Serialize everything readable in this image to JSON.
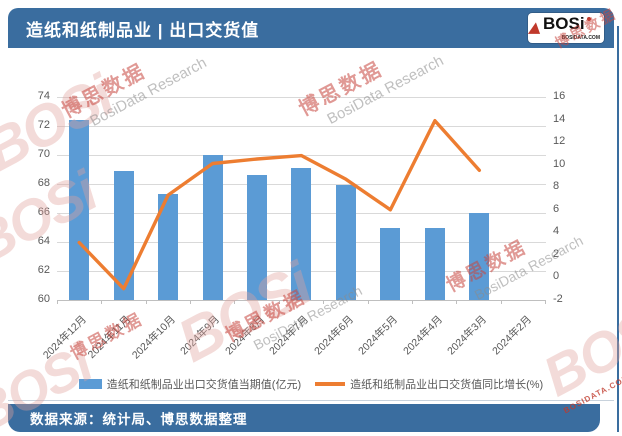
{
  "header": {
    "title": "造纸和纸制品业 | 出口交货值",
    "logo_text": "BOSi",
    "logo_subtext": "BOSIDATA.COM"
  },
  "footer": {
    "source_text": "数据来源：统计局、博思数据整理"
  },
  "watermark": {
    "logo": "BOSi",
    "cn": "博思数据",
    "en": "BosiData Research",
    "site": "BOSIDATA.COM"
  },
  "colors": {
    "header_bg": "#3A6D9F",
    "bar": "#5B9BD5",
    "line": "#ED7D31",
    "grid": "#D9D9D9",
    "axis_text": "#595959"
  },
  "chart_data": {
    "type": "bar+line",
    "categories": [
      "2024年12月",
      "2024年11月",
      "2024年10月",
      "2024年9月",
      "2024年8月",
      "2024年7月",
      "2024年6月",
      "2024年5月",
      "2024年4月",
      "2024年3月",
      "2024年2月"
    ],
    "series": [
      {
        "name": "造纸和纸制品业出口交货值当期值(亿元)",
        "type": "bar",
        "axis": "left",
        "values": [
          72.4,
          68.9,
          67.3,
          70.0,
          68.6,
          69.1,
          67.9,
          65.0,
          65.0,
          66.0,
          null
        ]
      },
      {
        "name": "造纸和纸制品业出口交货值同比增长(%)",
        "type": "line",
        "axis": "right",
        "values": [
          3.1,
          -1.0,
          7.3,
          10.1,
          10.5,
          10.8,
          8.7,
          6.0,
          13.9,
          9.5,
          null
        ]
      }
    ],
    "left_axis": {
      "min": 60,
      "max": 74,
      "step": 2
    },
    "right_axis": {
      "min": -2,
      "max": 16,
      "step": 2
    },
    "grid": true,
    "legend_position": "bottom"
  }
}
